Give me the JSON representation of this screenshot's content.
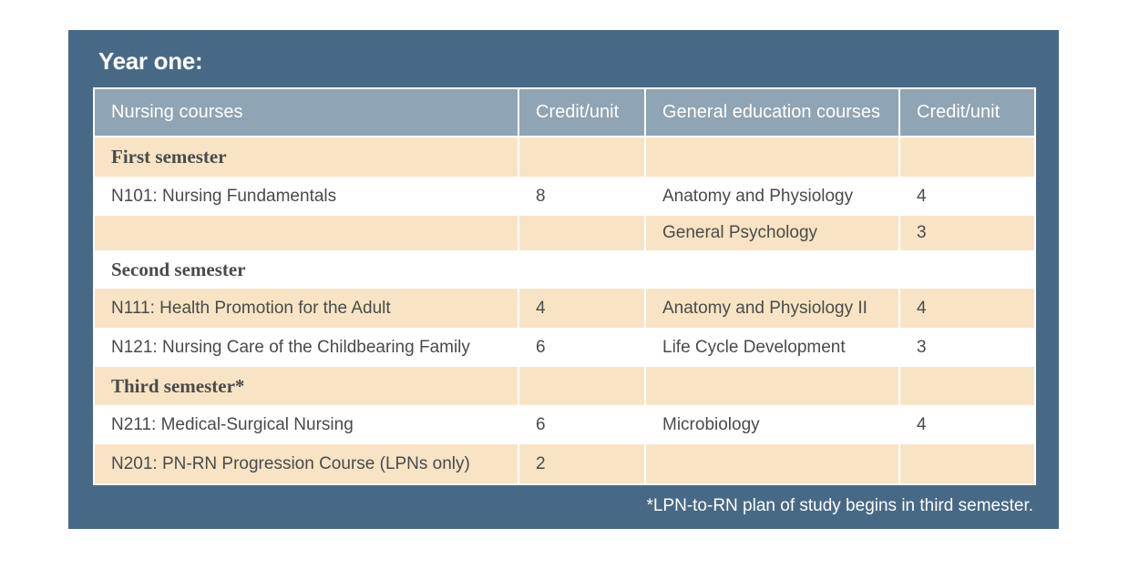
{
  "title": "Year one:",
  "headers": {
    "nursing_courses": "Nursing courses",
    "credit_unit_1": "Credit/unit",
    "gen_ed_courses": "General education courses",
    "credit_unit_2": "Credit/unit"
  },
  "rows": [
    {
      "semester": "First semester"
    },
    {
      "nursing": "N101: Nursing Fundamentals",
      "nursing_credit": "8",
      "gen_ed": "Anatomy and Physiology",
      "gen_ed_credit": "4"
    },
    {
      "nursing": "",
      "nursing_credit": "",
      "gen_ed": "General Psychology",
      "gen_ed_credit": "3"
    },
    {
      "semester": "Second semester"
    },
    {
      "nursing": "N111: Health Promotion for the Adult",
      "nursing_credit": "4",
      "gen_ed": "Anatomy and Physiology II",
      "gen_ed_credit": "4"
    },
    {
      "nursing": "N121: Nursing Care of the Childbearing Family",
      "nursing_credit": "6",
      "gen_ed": "Life Cycle Development",
      "gen_ed_credit": "3"
    },
    {
      "semester": "Third semester*"
    },
    {
      "nursing": "N211: Medical-Surgical Nursing",
      "nursing_credit": "6",
      "gen_ed": "Microbiology",
      "gen_ed_credit": "4"
    },
    {
      "nursing": "N201: PN-RN Progression Course (LPNs only)",
      "nursing_credit": "2",
      "gen_ed": "",
      "gen_ed_credit": ""
    }
  ],
  "footnote": "*LPN-to-RN plan of study begins in third semester.",
  "colors": {
    "panel": "#476985",
    "header": "#8fa4b4",
    "shaded_row": "#f8e4c4",
    "text": "#4a4a4a"
  }
}
